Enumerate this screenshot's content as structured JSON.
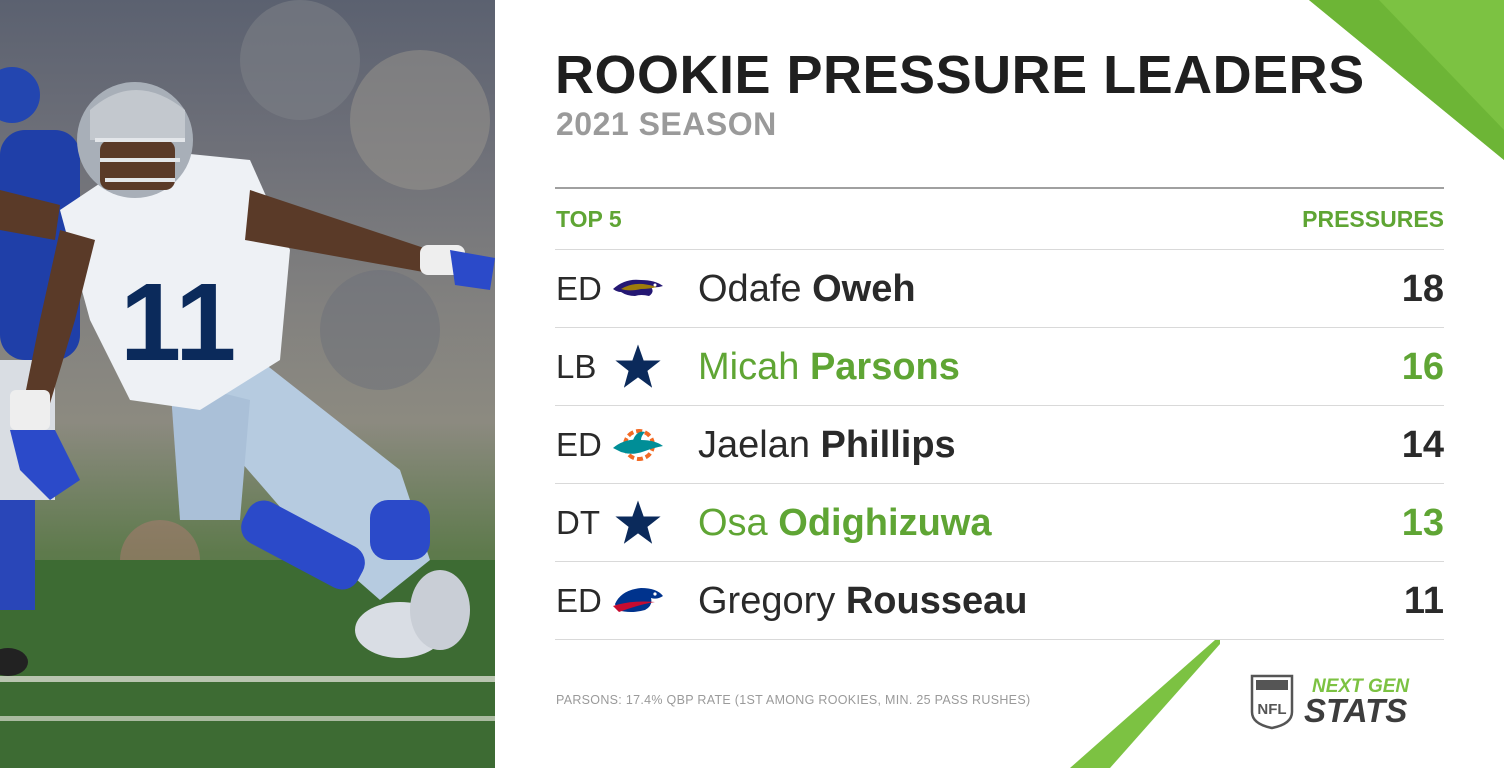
{
  "header": {
    "title": "ROOKIE PRESSURE LEADERS",
    "subtitle": "2021 SEASON"
  },
  "table": {
    "left_header": "TOP 5",
    "right_header": "PRESSURES",
    "rows": [
      {
        "position": "ED",
        "team_logo": "ravens-logo-icon",
        "first": "Odafe",
        "last": "Oweh",
        "value": "18",
        "highlight": false
      },
      {
        "position": "LB",
        "team_logo": "cowboys-star-icon",
        "first": "Micah",
        "last": "Parsons",
        "value": "16",
        "highlight": true
      },
      {
        "position": "ED",
        "team_logo": "dolphins-logo-icon",
        "first": "Jaelan",
        "last": "Phillips",
        "value": "14",
        "highlight": false
      },
      {
        "position": "DT",
        "team_logo": "cowboys-star-icon",
        "first": "Osa",
        "last": "Odighizuwa",
        "value": "13",
        "highlight": true
      },
      {
        "position": "ED",
        "team_logo": "bills-logo-icon",
        "first": "Gregory",
        "last": "Rousseau",
        "value": "11",
        "highlight": false
      }
    ]
  },
  "footnote": "PARSONS: 17.4% QBP RATE (1ST AMONG ROOKIES, MIN. 25 PASS RUSHES)",
  "branding": {
    "line1": "NEXT GEN",
    "line2": "STATS",
    "shield": "NFL"
  },
  "photo": {
    "jersey_number": "11"
  },
  "colors": {
    "accent_green": "#5fa534",
    "bright_green": "#7cc242",
    "text_dark": "#1f1f1f",
    "cowboys_navy": "#0b2a5b"
  }
}
